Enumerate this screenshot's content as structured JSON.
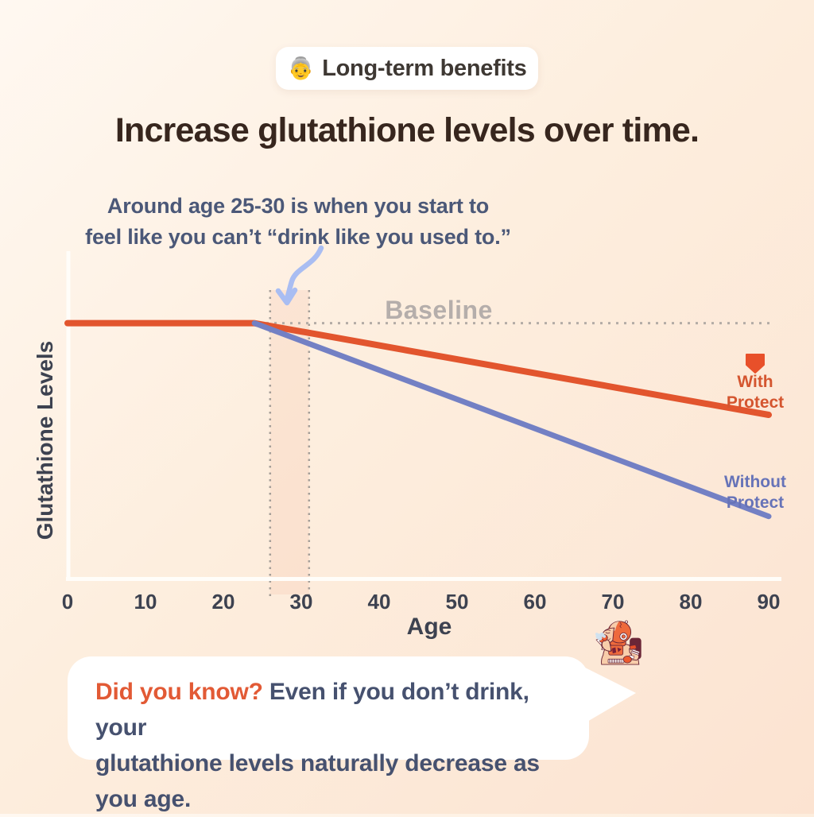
{
  "badge": {
    "emoji": "👵",
    "label": "Long-term benefits",
    "emoji_name": "old-woman-emoji"
  },
  "title": "Increase glutathione levels over time.",
  "annotation": {
    "line1": "Around age 25-30 is when you start to",
    "line2": "feel like you can’t “drink like you used to.”"
  },
  "chart_data": {
    "type": "line",
    "title": "Increase glutathione levels over time.",
    "xlabel": "Age",
    "ylabel": "Glutathione Levels",
    "x_ticks": [
      0,
      10,
      20,
      30,
      40,
      50,
      60,
      70,
      80,
      90
    ],
    "xlim": [
      0,
      90
    ],
    "ylim": [
      0,
      100
    ],
    "grid": false,
    "baseline": {
      "label": "Baseline",
      "value": 78,
      "style": "dotted",
      "color": "#b3aca6"
    },
    "highlight_band": {
      "x_start": 26,
      "x_end": 31,
      "note": "age range 25-30 marked with dashed vertical lines"
    },
    "annotation_arrow_color": "#a9bdf2",
    "series": [
      {
        "name": "With Protect",
        "color": "#e2552e",
        "x": [
          0,
          24,
          90
        ],
        "y": [
          78,
          78,
          50
        ]
      },
      {
        "name": "Without Protect",
        "color": "#7380c4",
        "x": [
          24,
          90
        ],
        "y": [
          78,
          19
        ]
      }
    ],
    "legend_position": "right"
  },
  "legend": {
    "with_protect": {
      "line1": "With",
      "line2": "Protect",
      "color": "#d4552f",
      "icon": "shield-icon",
      "icon_color": "#e8502a"
    },
    "without_protect": {
      "line1": "Without",
      "line2": "Protect",
      "color": "#6673b8"
    }
  },
  "did_you_know": {
    "accent": "Did you know?",
    "line1_rest": " Even if you don’t drink, your",
    "line2": "glutathione levels naturally decrease as you age.",
    "accent_color": "#e25a35"
  },
  "illustration": {
    "description": "retro astronaut in orange suit drinking a martini, exhaling vapor"
  },
  "colors": {
    "background_top": "#fff8f1",
    "background_bottom": "#fce3d1",
    "title_text": "#37261e",
    "annotation_text": "#4b5878",
    "axis_text": "#3d4250",
    "baseline_text": "#b5aeab",
    "with_protect_line": "#e2552e",
    "without_protect_line": "#7380c4",
    "bubble_bg": "#ffffff"
  }
}
